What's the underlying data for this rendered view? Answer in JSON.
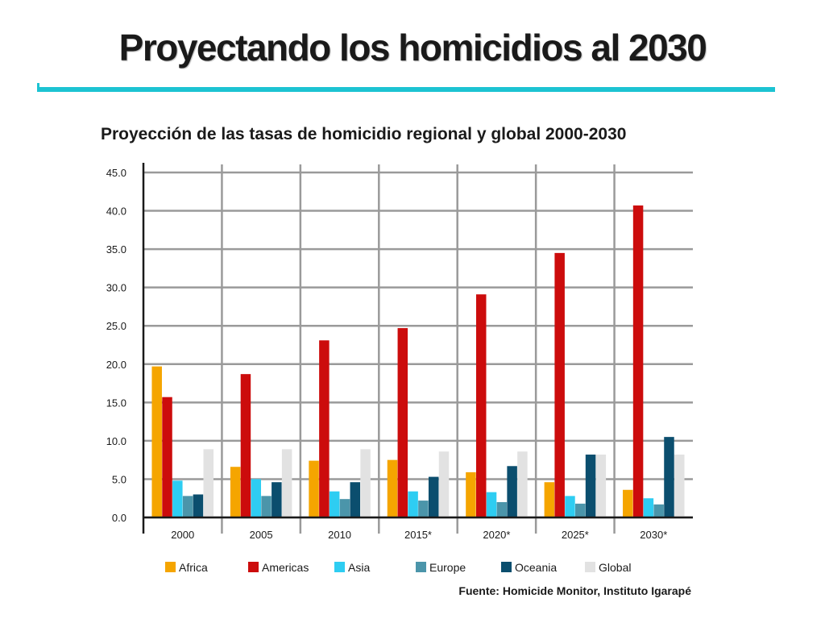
{
  "slide": {
    "title": "Proyectando los homicidios al 2030",
    "accent_color": "#1cc3d2"
  },
  "source": "Fuente: Homicide Monitor, Instituto Igarapé",
  "chart_data": {
    "type": "bar",
    "title": "Proyección de las tasas de homicidio regional y global 2000-2030",
    "xlabel": "",
    "ylabel": "",
    "ylim": [
      0,
      45
    ],
    "yticks": [
      "0.0",
      "5.0",
      "10.0",
      "15.0",
      "20.0",
      "25.0",
      "30.0",
      "35.0",
      "40.0",
      "45.0"
    ],
    "grid": true,
    "legend_position": "bottom",
    "categories": [
      "2000",
      "2005",
      "2010",
      "2015*",
      "2020*",
      "2025*",
      "2030*"
    ],
    "series": [
      {
        "name": "Africa",
        "color": "#f5a500",
        "values": [
          19.7,
          6.6,
          7.4,
          7.5,
          5.9,
          4.6,
          3.6
        ]
      },
      {
        "name": "Americas",
        "color": "#cc0c0c",
        "values": [
          15.7,
          18.7,
          23.1,
          24.7,
          29.1,
          34.5,
          40.7
        ]
      },
      {
        "name": "Asia",
        "color": "#2ecdf2",
        "values": [
          4.8,
          5.0,
          3.4,
          3.4,
          3.3,
          2.8,
          2.5
        ]
      },
      {
        "name": "Europe",
        "color": "#4b95aa",
        "values": [
          2.8,
          2.8,
          2.4,
          2.2,
          2.0,
          1.8,
          1.7
        ]
      },
      {
        "name": "Oceania",
        "color": "#0b4e6e",
        "values": [
          3.0,
          4.6,
          4.6,
          5.3,
          6.7,
          8.2,
          10.5
        ]
      },
      {
        "name": "Global",
        "color": "#e2e2e2",
        "values": [
          8.9,
          8.9,
          8.9,
          8.6,
          8.6,
          8.2,
          8.2
        ]
      }
    ]
  }
}
